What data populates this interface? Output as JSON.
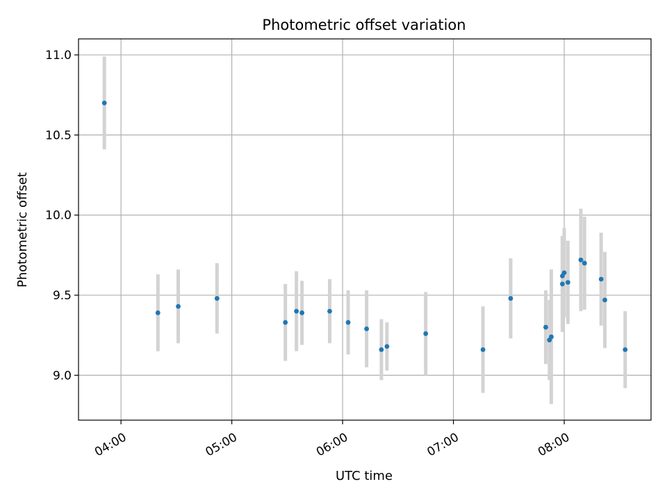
{
  "chart_data": {
    "type": "scatter",
    "title": "Photometric offset variation",
    "xlabel": "UTC time",
    "ylabel": "Photometric offset",
    "xlim": [
      "03:37",
      "08:47"
    ],
    "ylim": [
      8.72,
      11.1
    ],
    "x_ticks": [
      "04:00",
      "05:00",
      "06:00",
      "07:00",
      "08:00"
    ],
    "y_ticks": [
      "9.0",
      "9.5",
      "10.0",
      "10.5",
      "11.0"
    ],
    "grid": true,
    "colors": {
      "point": "#1f77b4",
      "errorbar": "#d3d3d3",
      "grid": "#b0b0b0"
    },
    "points": [
      {
        "x": "03:51",
        "y": 10.7,
        "err": 0.29
      },
      {
        "x": "04:20",
        "y": 9.39,
        "err": 0.24
      },
      {
        "x": "04:31",
        "y": 9.43,
        "err": 0.23
      },
      {
        "x": "04:52",
        "y": 9.48,
        "err": 0.22
      },
      {
        "x": "05:29",
        "y": 9.33,
        "err": 0.24
      },
      {
        "x": "05:35",
        "y": 9.4,
        "err": 0.25
      },
      {
        "x": "05:38",
        "y": 9.39,
        "err": 0.2
      },
      {
        "x": "05:53",
        "y": 9.4,
        "err": 0.2
      },
      {
        "x": "06:03",
        "y": 9.33,
        "err": 0.2
      },
      {
        "x": "06:13",
        "y": 9.29,
        "err": 0.24
      },
      {
        "x": "06:21",
        "y": 9.16,
        "err": 0.19
      },
      {
        "x": "06:24",
        "y": 9.18,
        "err": 0.15
      },
      {
        "x": "06:45",
        "y": 9.26,
        "err": 0.26
      },
      {
        "x": "07:16",
        "y": 9.16,
        "err": 0.27
      },
      {
        "x": "07:31",
        "y": 9.48,
        "err": 0.25
      },
      {
        "x": "07:50",
        "y": 9.3,
        "err": 0.23
      },
      {
        "x": "07:52",
        "y": 9.22,
        "err": 0.25
      },
      {
        "x": "07:53",
        "y": 9.24,
        "err": 0.42
      },
      {
        "x": "07:59",
        "y": 9.57,
        "err": 0.3
      },
      {
        "x": "07:59",
        "y": 9.62,
        "err": 0.24
      },
      {
        "x": "08:00",
        "y": 9.64,
        "err": 0.28
      },
      {
        "x": "08:02",
        "y": 9.58,
        "err": 0.26
      },
      {
        "x": "08:09",
        "y": 9.72,
        "err": 0.32
      },
      {
        "x": "08:11",
        "y": 9.7,
        "err": 0.29
      },
      {
        "x": "08:20",
        "y": 9.6,
        "err": 0.29
      },
      {
        "x": "08:22",
        "y": 9.47,
        "err": 0.3
      },
      {
        "x": "08:33",
        "y": 9.16,
        "err": 0.24
      }
    ]
  }
}
